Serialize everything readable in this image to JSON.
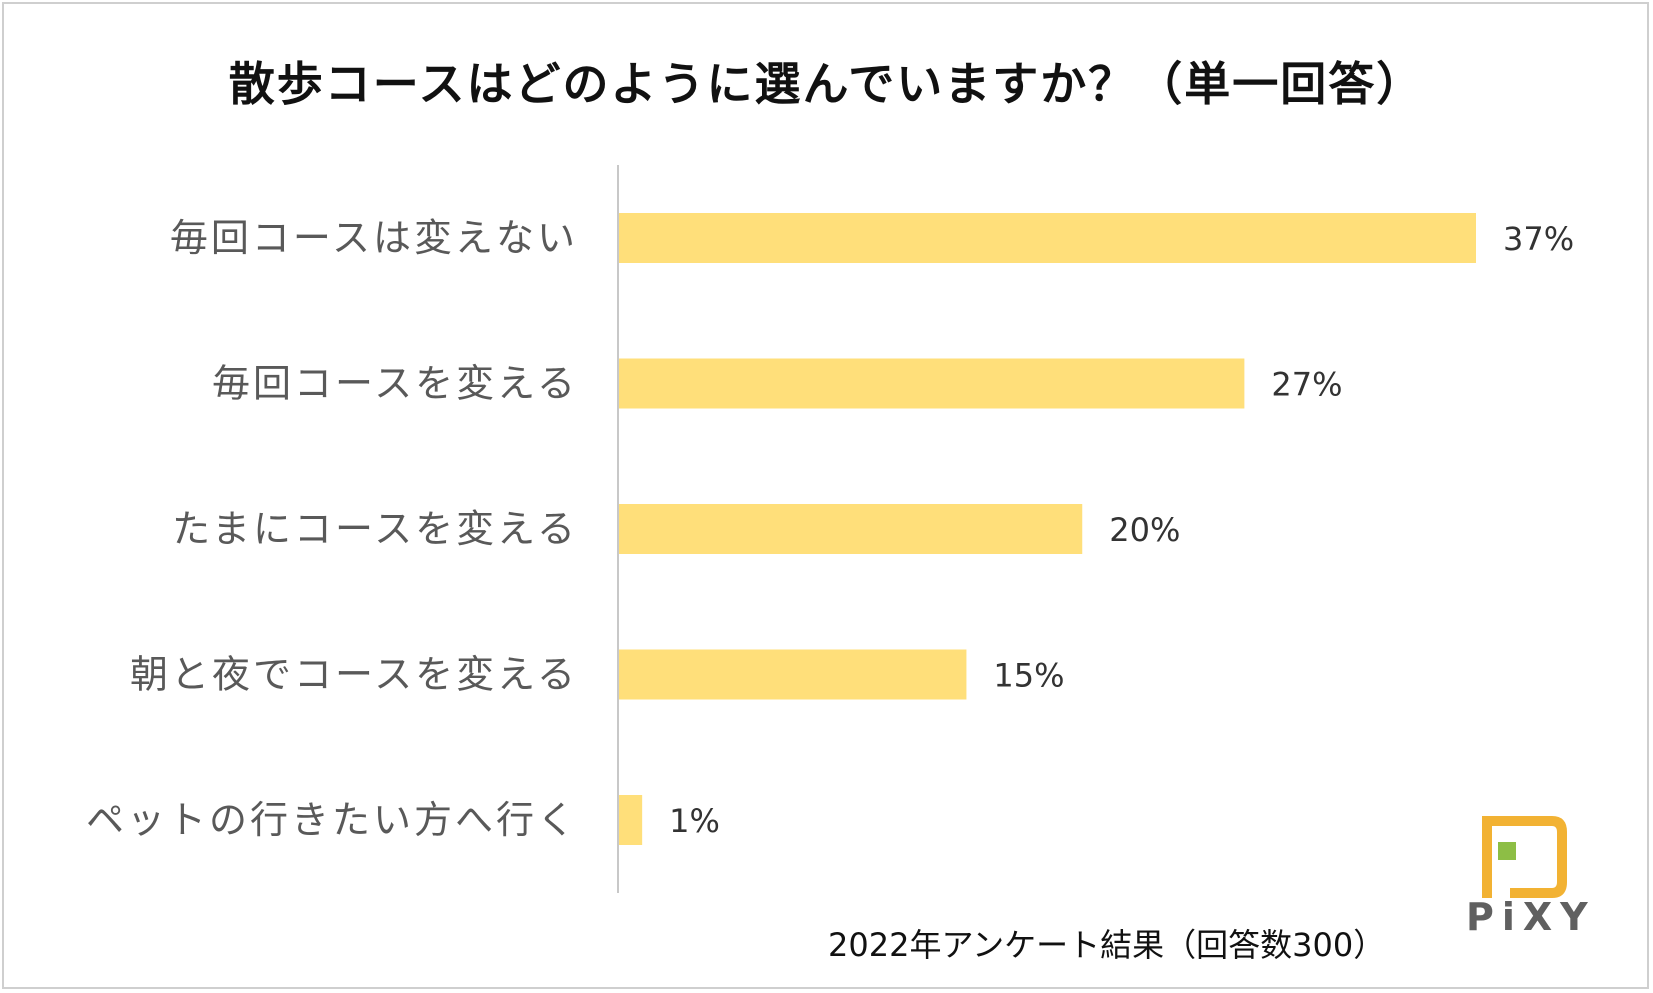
{
  "title": "散歩コースはどのように選んでいますか？（単一回答）",
  "footnote": "2022年アンケート結果（回答数300）",
  "logo_text": "PiXY",
  "colors": {
    "bar": "#FFDF7A",
    "axis": "#c8c8c8",
    "logo_orange": "#F2B233",
    "logo_green": "#8DBE45"
  },
  "chart_data": {
    "type": "bar",
    "orientation": "horizontal",
    "categories": [
      "毎回コースは変えない",
      "毎回コースを変える",
      "たまにコースを変える",
      "朝と夜でコースを変える",
      "ペットの行きたい方へ行く"
    ],
    "values": [
      37,
      27,
      20,
      15,
      1
    ],
    "data_labels": [
      "37%",
      "27%",
      "20%",
      "15%",
      "1%"
    ],
    "unit": "%",
    "xlim": [
      0,
      40
    ],
    "grid": false,
    "legend": "none"
  }
}
